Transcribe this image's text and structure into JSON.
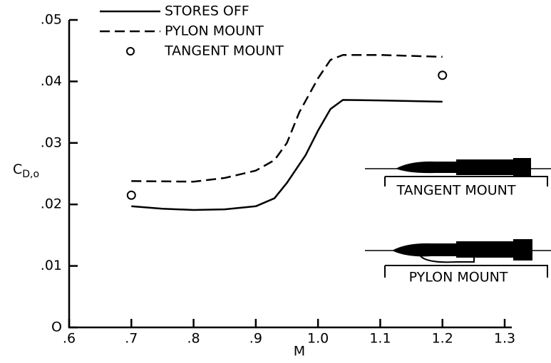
{
  "chart_data": {
    "type": "line",
    "x_label": "M",
    "y_label": {
      "main": "C",
      "sub": "D,o"
    },
    "xlim": [
      0.6,
      1.3
    ],
    "ylim": [
      0,
      0.05
    ],
    "xticks": [
      {
        "value": 0.6,
        "label": ".6"
      },
      {
        "value": 0.7,
        "label": ".7"
      },
      {
        "value": 0.8,
        "label": ".8"
      },
      {
        "value": 0.9,
        "label": ".9"
      },
      {
        "value": 1.0,
        "label": "1.0"
      },
      1.1,
      1.2,
      1.3
    ],
    "yticks": [
      {
        "value": 0,
        "label": "O"
      },
      {
        "value": 0.01,
        "label": ".01"
      },
      {
        "value": 0.02,
        "label": ".02"
      },
      {
        "value": 0.03,
        "label": ".03"
      },
      {
        "value": 0.04,
        "label": ".04"
      },
      {
        "value": 0.05,
        "label": ".05"
      }
    ],
    "series": [
      {
        "name": "STORES OFF",
        "color": "#000000",
        "style": "solid",
        "x": [
          0.7,
          0.75,
          0.8,
          0.85,
          0.9,
          0.93,
          0.95,
          0.98,
          1.0,
          1.02,
          1.04,
          1.1,
          1.2
        ],
        "values": [
          0.0197,
          0.0193,
          0.0191,
          0.0192,
          0.0197,
          0.021,
          0.0235,
          0.028,
          0.032,
          0.0355,
          0.037,
          0.0369,
          0.0367
        ]
      },
      {
        "name": "PYLON MOUNT",
        "color": "#000000",
        "style": "dashed",
        "x": [
          0.7,
          0.8,
          0.85,
          0.9,
          0.93,
          0.95,
          0.97,
          1.0,
          1.02,
          1.04,
          1.1,
          1.2
        ],
        "values": [
          0.0238,
          0.0237,
          0.0243,
          0.0255,
          0.0272,
          0.03,
          0.035,
          0.0405,
          0.0435,
          0.0443,
          0.0443,
          0.044
        ]
      },
      {
        "name": "TANGENT MOUNT",
        "color": "#000000",
        "style": "markers",
        "x": [
          0.7,
          1.2
        ],
        "values": [
          0.0215,
          0.041
        ]
      }
    ],
    "annotations": [
      "TANGENT MOUNT",
      "PYLON MOUNT"
    ]
  }
}
